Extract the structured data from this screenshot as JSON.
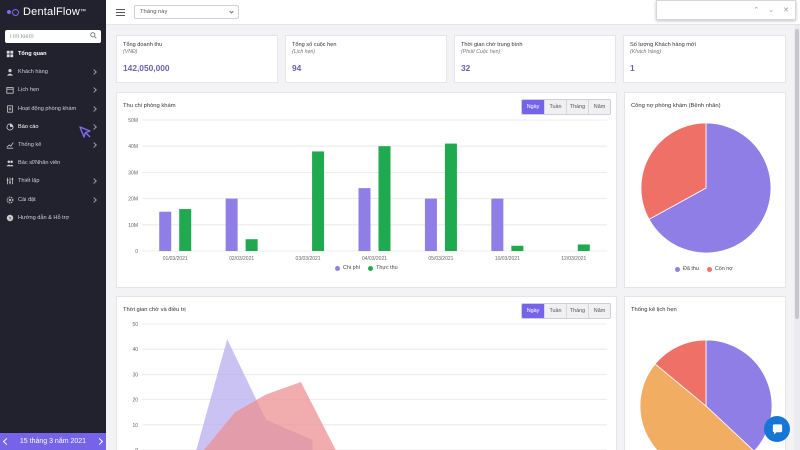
{
  "app": {
    "name": "DentalFlow",
    "trademark": "™",
    "accent": "#7563ea"
  },
  "sidebar": {
    "search_placeholder": "Tìm kiếm",
    "items": [
      {
        "label": "Tổng quan",
        "icon": "dashboard-icon",
        "expandable": false,
        "active": true
      },
      {
        "label": "Khách hàng",
        "icon": "user-icon",
        "expandable": true
      },
      {
        "label": "Lịch hẹn",
        "icon": "calendar-icon",
        "expandable": true
      },
      {
        "label": "Hoạt động phòng khám",
        "icon": "document-icon",
        "expandable": true
      },
      {
        "label": "Báo cáo",
        "icon": "report-icon",
        "expandable": true,
        "hover": true
      },
      {
        "label": "Thống kê",
        "icon": "chart-icon",
        "expandable": true
      },
      {
        "label": "Bác sĩ/Nhân viên",
        "icon": "staff-icon",
        "expandable": false
      },
      {
        "label": "Thiết lập",
        "icon": "setup-icon",
        "expandable": true
      },
      {
        "label": "Cài đặt",
        "icon": "settings-icon",
        "expandable": true
      },
      {
        "label": "Hướng dẫn & Hỗ trợ",
        "icon": "help-icon",
        "expandable": false
      }
    ],
    "date_label": "15 tháng 3 năm 2021"
  },
  "topbar": {
    "period_value": "Tháng này"
  },
  "stats": [
    {
      "title": "Tổng doanh thu",
      "sub": "(VNĐ)",
      "value": "142,050,000"
    },
    {
      "title": "Tổng số cuộc hẹn",
      "sub": "(Lịch hẹn)",
      "value": "94"
    },
    {
      "title": "Thời gian chờ trung bình",
      "sub": "(Phút/ Cuộc hẹn)",
      "value": "32"
    },
    {
      "title": "Số lượng Khách hàng mới",
      "sub": "(Khách hàng)",
      "value": "1"
    }
  ],
  "segments": [
    "Ngày",
    "Tuần",
    "Tháng",
    "Năm"
  ],
  "revenue_card": {
    "title": "Thu chi phòng khám"
  },
  "debt_card": {
    "title": "Công nợ phòng khám (Bệnh nhân)"
  },
  "wait_card": {
    "title": "Thời gian chờ và điều trị"
  },
  "appt_card": {
    "title": "Thống kê lịch hẹn"
  },
  "chart_data": [
    {
      "type": "bar",
      "title": "Thu chi phòng khám",
      "categories": [
        "01/03/2021",
        "02/03/2021",
        "03/03/2021",
        "04/03/2021",
        "05/03/2021",
        "10/03/2021",
        "12/03/2021"
      ],
      "y_ticks": [
        "0",
        "10M",
        "20M",
        "30M",
        "40M",
        "50M"
      ],
      "ylim": [
        0,
        50
      ],
      "y_unit": "M",
      "grid": true,
      "legend": "bottom",
      "series": [
        {
          "name": "Chi phí",
          "color": "#8f7ee6",
          "values": [
            15,
            20,
            0,
            24,
            20,
            20,
            0
          ]
        },
        {
          "name": "Thực thu",
          "color": "#1faa4f",
          "values": [
            16,
            4.5,
            38,
            40,
            41,
            2,
            2.5
          ]
        }
      ]
    },
    {
      "type": "pie",
      "title": "Công nợ phòng khám (Bệnh nhân)",
      "legend": "bottom",
      "slices": [
        {
          "name": "Đã thu",
          "value": 67,
          "color": "#8f7ee6"
        },
        {
          "name": "Còn nợ",
          "value": 33,
          "color": "#ef7067"
        }
      ]
    },
    {
      "type": "area",
      "title": "Thời gian chờ và điều trị",
      "y_ticks": [
        "0",
        "10",
        "20",
        "30",
        "40",
        "50"
      ],
      "ylim": [
        0,
        50
      ],
      "grid": true,
      "series": [
        {
          "color": "#b7aaf0",
          "points": [
            [
              0.7,
              0
            ],
            [
              1.1,
              44
            ],
            [
              1.6,
              12
            ],
            [
              2.2,
              4
            ]
          ]
        },
        {
          "color": "#eb8e8e",
          "points": [
            [
              0.8,
              0
            ],
            [
              1.2,
              15
            ],
            [
              1.6,
              22
            ],
            [
              2.05,
              27
            ],
            [
              2.5,
              0
            ]
          ]
        }
      ]
    },
    {
      "type": "pie",
      "title": "Thống kê lịch hẹn",
      "slices": [
        {
          "value": 37,
          "color": "#8f7ee6"
        },
        {
          "value": 49,
          "color": "#f1ad62"
        },
        {
          "value": 14,
          "color": "#ef7067"
        }
      ]
    }
  ]
}
